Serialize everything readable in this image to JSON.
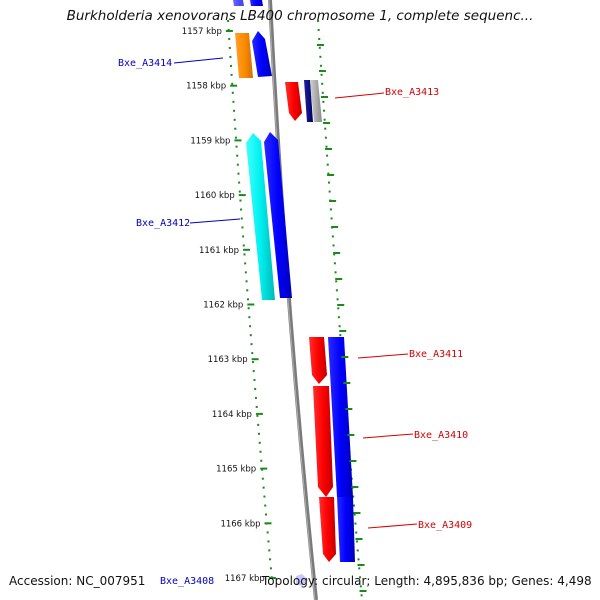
{
  "title": "Burkholderia xenovorans LB400 chromosome 1, complete sequenc...",
  "footer": {
    "accession": "Accession: NC_007951",
    "gene_label": "Bxe_A3408",
    "stats": "Topology: circular; Length: 4,895,836 bp; Genes: 4,498"
  },
  "ticks": [
    "1157 kbp",
    "1158 kbp",
    "1159 kbp",
    "1160 kbp",
    "1161 kbp",
    "1162 kbp",
    "1163 kbp",
    "1164 kbp",
    "1165 kbp",
    "1166 kbp",
    "1167 kbp"
  ],
  "genes": [
    {
      "name": "Bxe_A3414",
      "strand": "left",
      "color": "#0000c0"
    },
    {
      "name": "Bxe_A3413",
      "strand": "right",
      "color": "#d40000"
    },
    {
      "name": "Bxe_A3412",
      "strand": "left",
      "color": "#0000c0"
    },
    {
      "name": "Bxe_A3411",
      "strand": "right",
      "color": "#d40000"
    },
    {
      "name": "Bxe_A3410",
      "strand": "right",
      "color": "#d40000"
    },
    {
      "name": "Bxe_A3409",
      "strand": "right",
      "color": "#d40000"
    }
  ],
  "colors": {
    "backbone": "#808080",
    "tick": "#1a8a1a",
    "forward": "#0000ff",
    "reverse": "#ff0000",
    "cyan": "#00e5e5",
    "orange": "#ff8c00",
    "navy": "#000080",
    "gray": "#a0a0a0"
  }
}
